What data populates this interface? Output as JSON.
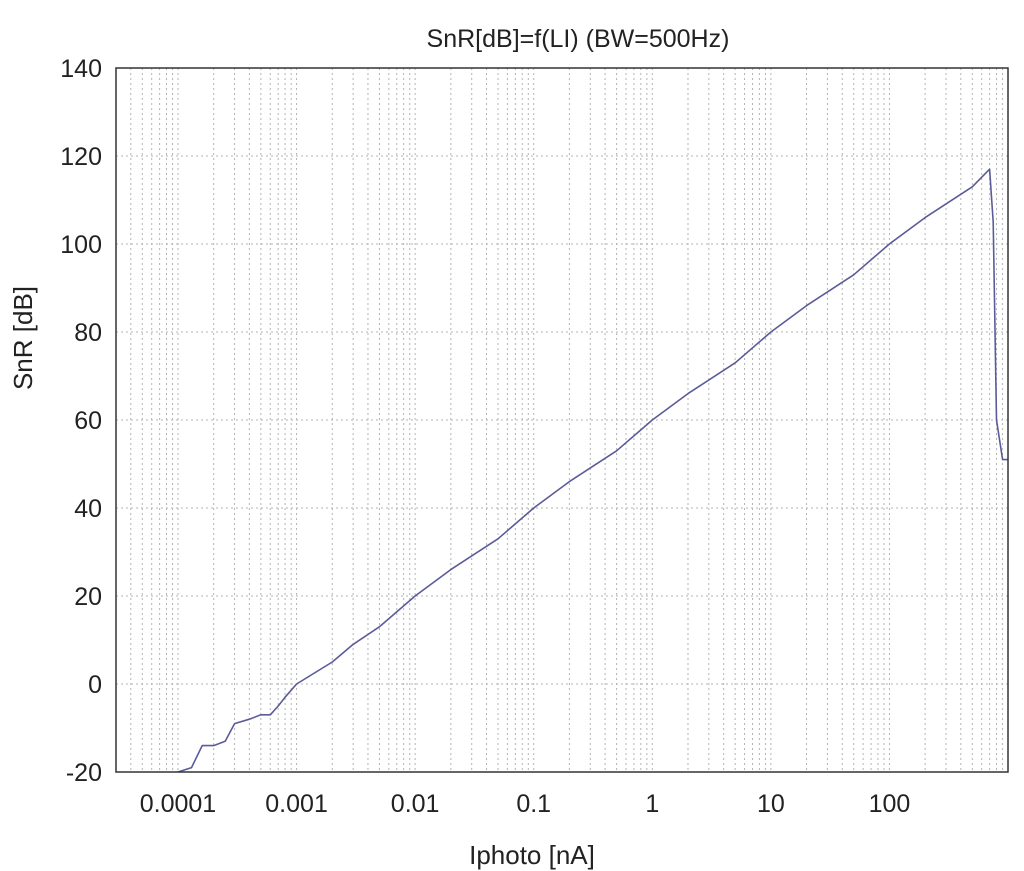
{
  "chart_data": {
    "type": "line",
    "title": "SnR[dB]=f(LI)  (BW=500Hz)",
    "xlabel": "Iphoto [nA]",
    "ylabel": "SnR [dB]",
    "x_scale": "log",
    "xlim": [
      3e-05,
      1000
    ],
    "ylim": [
      -20,
      140
    ],
    "x_ticks": [
      0.0001,
      0.001,
      0.01,
      0.1,
      1,
      10,
      100
    ],
    "x_tick_labels": [
      "0.0001",
      "0.001",
      "0.01",
      "0.1",
      "1",
      "10",
      "100"
    ],
    "y_ticks": [
      -20,
      0,
      20,
      40,
      60,
      80,
      100,
      120,
      140
    ],
    "y_tick_labels": [
      "-20",
      "0",
      "20",
      "40",
      "60",
      "80",
      "100",
      "120",
      "140"
    ],
    "grid": true,
    "legend": "none",
    "series": [
      {
        "color": "#5b5b9a",
        "x": [
          0.0001,
          0.00013,
          0.00016,
          0.0002,
          0.00025,
          0.0003,
          0.0004,
          0.0005,
          0.0006,
          0.0007,
          0.0008,
          0.001,
          0.002,
          0.003,
          0.005,
          0.01,
          0.02,
          0.05,
          0.1,
          0.2,
          0.5,
          1,
          2,
          5,
          10,
          20,
          50,
          100,
          200,
          500,
          700,
          750,
          800,
          900,
          1000
        ],
        "y": [
          -20,
          -19,
          -14,
          -14,
          -13,
          -9,
          -8,
          -7,
          -7,
          -5,
          -3,
          0,
          5,
          9,
          13,
          20,
          26,
          33,
          40,
          46,
          53,
          60,
          66,
          73,
          80,
          86,
          93,
          100,
          106,
          113,
          117,
          105,
          60,
          51,
          51
        ]
      }
    ]
  }
}
